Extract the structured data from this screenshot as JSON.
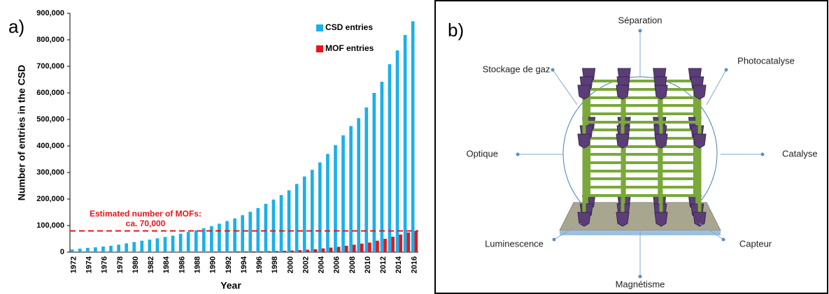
{
  "chart_data": {
    "type": "bar",
    "panel_label": "a)",
    "xlabel": "Year",
    "ylabel": "Number of entries in the CSD",
    "categories": [
      "1972",
      null,
      "1974",
      null,
      "1976",
      null,
      "1978",
      null,
      "1980",
      null,
      "1982",
      null,
      "1984",
      null,
      "1986",
      null,
      "1988",
      null,
      "1990",
      null,
      "1992",
      null,
      "1994",
      null,
      "1996",
      null,
      "1998",
      null,
      "2000",
      null,
      "2002",
      null,
      "2004",
      null,
      "2006",
      null,
      "2008",
      null,
      "2010",
      null,
      "2012",
      null,
      "2014",
      null,
      "2016"
    ],
    "series": [
      {
        "name": "CSD entries",
        "color": "#1ab0ea",
        "values": [
          10000,
          13000,
          16000,
          18000,
          21000,
          24000,
          28000,
          33000,
          38000,
          43000,
          47000,
          52000,
          57000,
          62000,
          69000,
          76000,
          82000,
          90000,
          98000,
          107000,
          117000,
          127000,
          139000,
          152000,
          166000,
          182000,
          198000,
          215000,
          233000,
          257000,
          285000,
          310000,
          338000,
          370000,
          403000,
          440000,
          475000,
          505000,
          545000,
          600000,
          642000,
          708000,
          760000,
          818000,
          870000
        ]
      },
      {
        "name": "MOF entries",
        "color": "#e8141a",
        "values": [
          500,
          500,
          600,
          700,
          800,
          900,
          1000,
          1000,
          1100,
          1200,
          1300,
          1400,
          1500,
          1600,
          1700,
          1800,
          1900,
          2000,
          2100,
          2200,
          2400,
          2600,
          2800,
          3000,
          3300,
          3700,
          4200,
          5000,
          6000,
          7500,
          9000,
          11000,
          14000,
          17000,
          20000,
          24000,
          28000,
          32000,
          36000,
          43000,
          50000,
          58000,
          66000,
          74000,
          80000
        ]
      }
    ],
    "ylim": [
      0,
      900000
    ],
    "yticks": [
      0,
      {
        "value": 100000,
        "label": "100,000"
      },
      {
        "value": 200000,
        "label": "200,000"
      },
      {
        "value": 300000,
        "label": "300,000"
      },
      {
        "value": 400000,
        "label": "400,000"
      },
      {
        "value": 500000,
        "label": "500,000"
      },
      {
        "value": 600000,
        "label": "600,000"
      },
      {
        "value": 700000,
        "label": "700,000"
      },
      {
        "value": 800000,
        "label": "800,000"
      },
      {
        "value": 900000,
        "label": "900,000"
      }
    ],
    "legend": "upper right",
    "reference_line": {
      "value": 80000,
      "color": "#e8141a",
      "label_lines": [
        "Estimated number of MOFs:",
        "ca. 70,000"
      ]
    }
  },
  "diagram": {
    "panel_label": "b)",
    "nodes": [
      {
        "label": "Séparation"
      },
      {
        "label": "Photocatalyse"
      },
      {
        "label": "Catalyse"
      },
      {
        "label": "Capteur"
      },
      {
        "label": "Magnétisme"
      },
      {
        "label": "Luminescence"
      },
      {
        "label": "Optique"
      },
      {
        "label": "Stockage de gaz"
      }
    ]
  }
}
